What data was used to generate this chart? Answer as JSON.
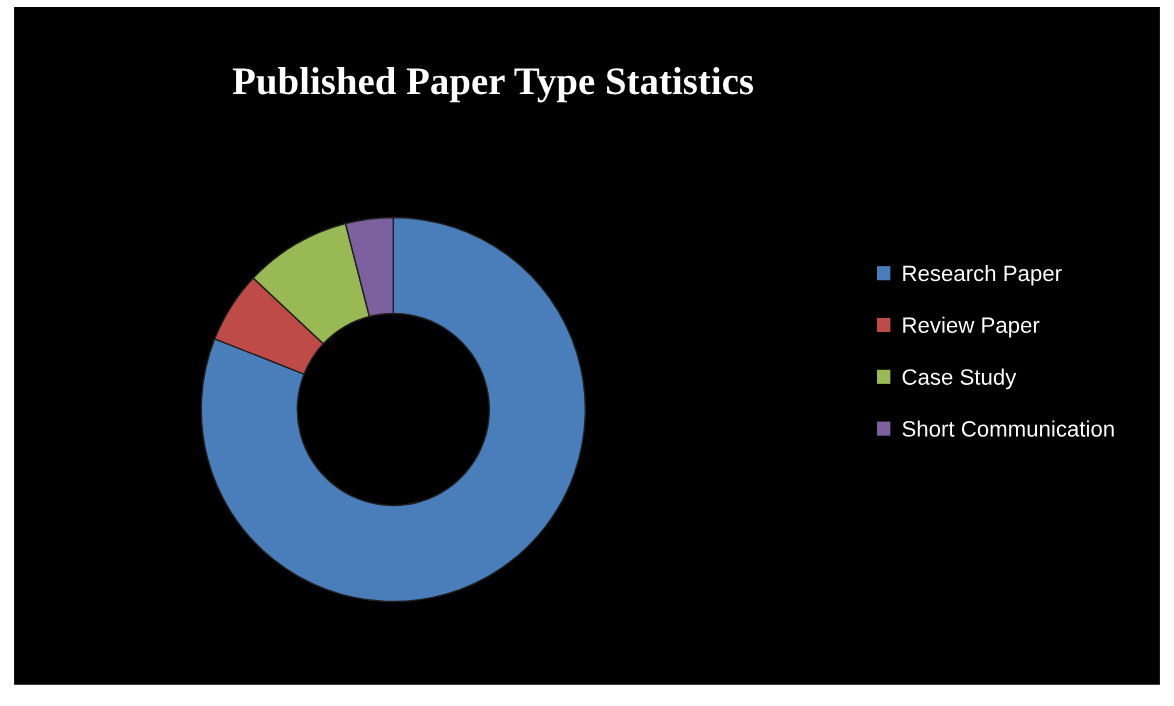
{
  "chart_data": {
    "type": "donut",
    "title": "Published Paper Type Statistics",
    "categories": [
      "Research Paper",
      "Review Paper",
      "Case Study",
      "Short Communication"
    ],
    "values": [
      81,
      6,
      9,
      4
    ],
    "colors": [
      "#4a7ebb",
      "#be4b48",
      "#98b954",
      "#7d60a0"
    ],
    "legend": "right"
  }
}
